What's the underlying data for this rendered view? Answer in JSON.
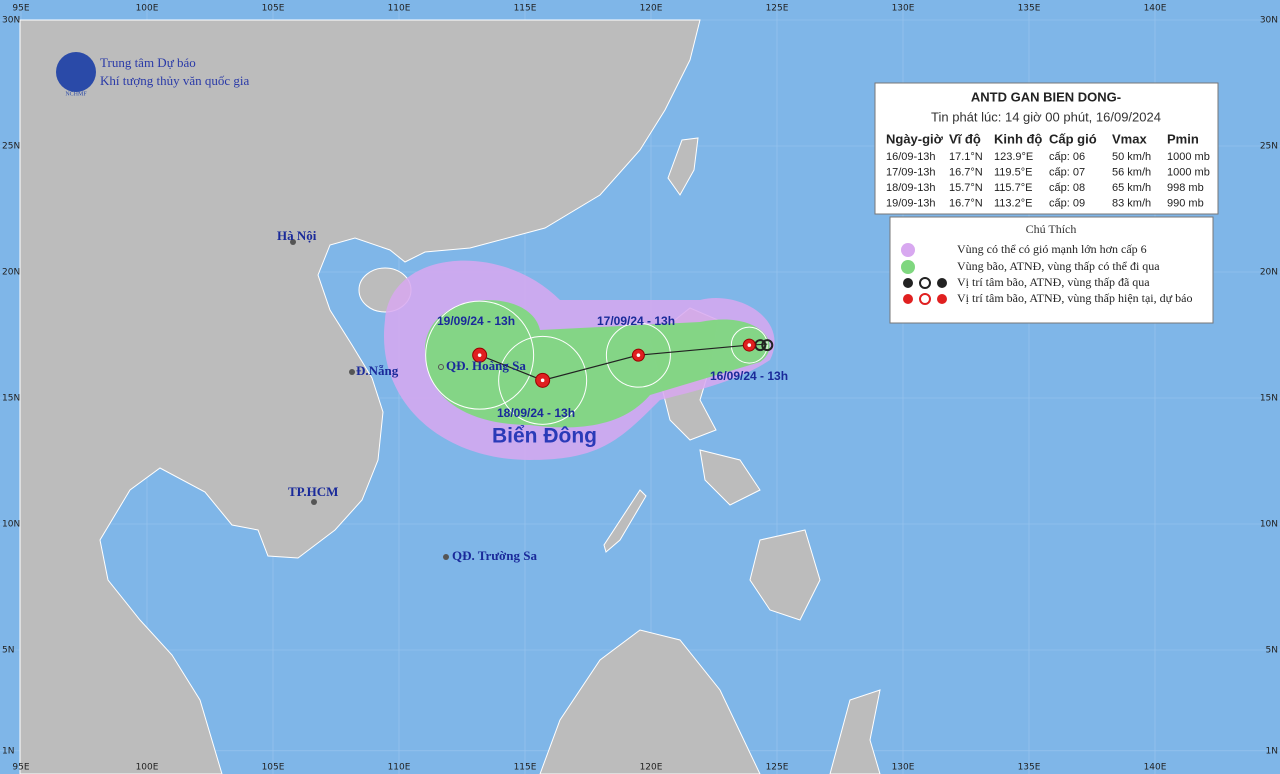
{
  "logo": {
    "line1": "Trung tâm Dự báo",
    "line2": "Khí tượng thủy văn quốc gia",
    "badge": "NCHMF"
  },
  "lon_labels": [
    "95E",
    "100E",
    "105E",
    "110E",
    "115E",
    "120E",
    "125E",
    "130E",
    "135E",
    "140E"
  ],
  "lat_labels": [
    "30N",
    "25N",
    "20N",
    "15N",
    "10N",
    "5N",
    "1N"
  ],
  "info": {
    "title": "ANTD GAN BIEN DONG-",
    "issued": "Tin phát lúc: 14 giờ 00 phút, 16/09/2024",
    "header": [
      "Ngày-giờ",
      "Vĩ độ",
      "Kinh độ",
      "Cấp gió",
      "Vmax",
      "Pmin"
    ],
    "rows": [
      [
        "16/09-13h",
        "17.1°N",
        "123.9°E",
        "cấp: 06",
        "50 km/h",
        "1000 mb"
      ],
      [
        "17/09-13h",
        "16.7°N",
        "119.5°E",
        "cấp: 07",
        "56 km/h",
        "1000 mb"
      ],
      [
        "18/09-13h",
        "15.7°N",
        "115.7°E",
        "cấp: 08",
        "65 km/h",
        "998 mb"
      ],
      [
        "19/09-13h",
        "16.7°N",
        "113.2°E",
        "cấp: 09",
        "83 km/h",
        "990 mb"
      ]
    ]
  },
  "legend": {
    "title": "Chú Thích",
    "items": [
      "Vùng có thể có gió mạnh lớn hơn cấp 6",
      "Vùng bão, ATNĐ, vùng thấp có thể đi qua",
      "Vị trí tâm bão, ATNĐ, vùng thấp đã qua",
      "Vị trí tâm bão, ATNĐ, vùng thấp hiện tại, dự báo"
    ]
  },
  "track_labels": [
    "16/09/24 - 13h",
    "17/09/24 - 13h",
    "18/09/24 - 13h",
    "19/09/24 - 13h"
  ],
  "places": {
    "hanoi": "Hà Nội",
    "danang": "Đ.Nẵng",
    "hcm": "TP.HCM",
    "hoangsa": "QĐ. Hoàng Sa",
    "truongsa": "QĐ. Trường Sa",
    "biendong": "Biển Đông"
  }
}
